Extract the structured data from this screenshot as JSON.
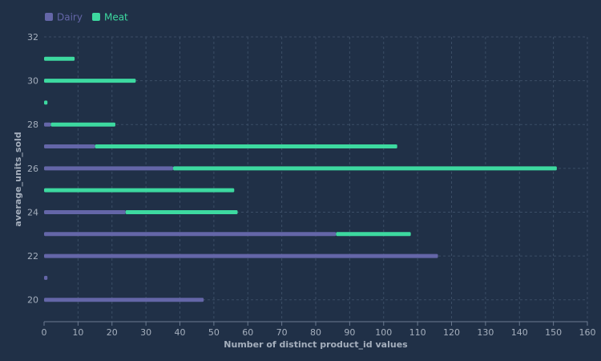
{
  "chart_data": {
    "type": "bar",
    "orientation": "horizontal",
    "stacked": true,
    "xlabel": "Number of distinct product_id values",
    "ylabel": "average_units_sold",
    "xlim": [
      0,
      160
    ],
    "ylim": [
      19,
      32
    ],
    "x_ticks": [
      0,
      10,
      20,
      30,
      40,
      50,
      60,
      70,
      80,
      90,
      100,
      110,
      120,
      130,
      140,
      150,
      160
    ],
    "y_ticks": [
      20,
      22,
      24,
      26,
      28,
      30,
      32
    ],
    "grid": true,
    "legend_position": "top-left",
    "categories": [
      20,
      21,
      22,
      23,
      24,
      25,
      26,
      27,
      28,
      29,
      30,
      31
    ],
    "series": [
      {
        "name": "Dairy",
        "color": "#6466a8",
        "values": [
          47,
          1,
          116,
          86,
          24,
          0,
          38,
          15,
          2,
          0,
          0,
          0
        ]
      },
      {
        "name": "Meat",
        "color": "#3dd9a0",
        "values": [
          0,
          0,
          0,
          22,
          33,
          56,
          113,
          89,
          19,
          1,
          27,
          9
        ]
      }
    ]
  }
}
